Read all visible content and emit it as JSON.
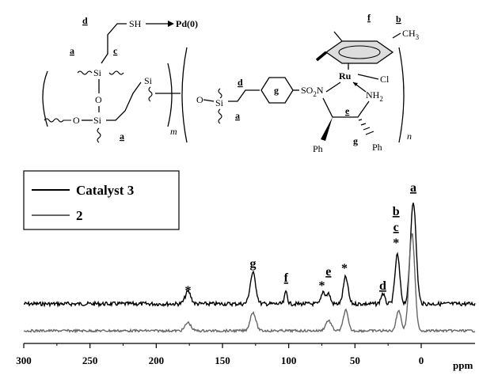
{
  "structure": {
    "sh_label": "SH",
    "pd_label": "Pd(0)",
    "si_label": "Si",
    "o_label": "O",
    "m_label": "m",
    "n_label": "n",
    "so2n_label": "SO",
    "so2n_sub": "2",
    "so2n_n": "N",
    "nh2_label": "NH",
    "nh2_sub": "2",
    "ru_label": "Ru",
    "cl_label": "Cl",
    "ch3_label": "CH",
    "ch3_sub": "3",
    "ph_label": "Ph",
    "labels": {
      "a": "a",
      "b": "b",
      "c": "c",
      "d": "d",
      "e": "e",
      "f": "f",
      "g": "g"
    }
  },
  "chart_data": {
    "type": "line",
    "xlabel": "ppm",
    "ylabel": "",
    "x_ticks": [
      300,
      250,
      200,
      150,
      100,
      50,
      0
    ],
    "xlim": [
      300,
      -10
    ],
    "x_reversed": true,
    "legend_position": "top-left",
    "series": [
      {
        "name": "Catalyst 3",
        "color": "#000000",
        "offset": 1.0,
        "peaks": [
          {
            "x": 176,
            "h": 0.12,
            "w": 3
          },
          {
            "x": 127,
            "h": 0.3,
            "w": 3
          },
          {
            "x": 102,
            "h": 0.12,
            "w": 1.5
          },
          {
            "x": 74,
            "h": 0.12,
            "w": 2
          },
          {
            "x": 70,
            "h": 0.1,
            "w": 2
          },
          {
            "x": 57,
            "h": 0.26,
            "w": 2.5
          },
          {
            "x": 29,
            "h": 0.1,
            "w": 2
          },
          {
            "x": 18,
            "h": 0.48,
            "w": 2.5
          },
          {
            "x": 6,
            "h": 1.0,
            "w": 3
          }
        ]
      },
      {
        "name": "2",
        "color": "#666666",
        "offset": 0.0,
        "peaks": [
          {
            "x": 176,
            "h": 0.08,
            "w": 3
          },
          {
            "x": 127,
            "h": 0.18,
            "w": 3
          },
          {
            "x": 70,
            "h": 0.1,
            "w": 3
          },
          {
            "x": 57,
            "h": 0.2,
            "w": 2.5
          },
          {
            "x": 17,
            "h": 0.2,
            "w": 2.5
          },
          {
            "x": 7,
            "h": 0.95,
            "w": 3
          }
        ]
      }
    ],
    "peak_labels": [
      {
        "text": "*",
        "x": 176
      },
      {
        "text": "g",
        "x": 127
      },
      {
        "text": "f",
        "x": 102
      },
      {
        "text": "*",
        "x": 75
      },
      {
        "text": "e",
        "x": 70
      },
      {
        "text": "*",
        "x": 58
      },
      {
        "text": "d",
        "x": 29
      },
      {
        "text": "b",
        "x": 19
      },
      {
        "text": "c",
        "x": 19
      },
      {
        "text": "*",
        "x": 19
      },
      {
        "text": "a",
        "x": 6
      }
    ]
  }
}
